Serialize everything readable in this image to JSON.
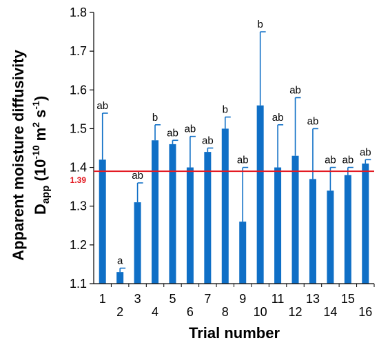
{
  "chart_data": {
    "type": "bar",
    "categories": [
      "1",
      "2",
      "3",
      "4",
      "5",
      "6",
      "7",
      "8",
      "9",
      "10",
      "11",
      "12",
      "13",
      "14",
      "15",
      "16"
    ],
    "values": [
      1.42,
      1.13,
      1.31,
      1.47,
      1.46,
      1.4,
      1.44,
      1.5,
      1.26,
      1.56,
      1.4,
      1.43,
      1.37,
      1.34,
      1.38,
      1.41
    ],
    "error_upper": [
      1.54,
      1.14,
      1.36,
      1.51,
      1.47,
      1.48,
      1.45,
      1.53,
      1.4,
      1.75,
      1.51,
      1.58,
      1.5,
      1.4,
      1.4,
      1.42
    ],
    "significance": [
      "ab",
      "a",
      "ab",
      "b",
      "ab",
      "ab",
      "ab",
      "b",
      "ab",
      "b",
      "ab",
      "ab",
      "ab",
      "ab",
      "ab",
      "ab"
    ],
    "xlabel": "Trial number",
    "ylabel_line1": "Apparent moisture diffusivity",
    "ylabel_line2": {
      "main": "D",
      "sub": "app",
      "rest1": " (10",
      "sup1": "-10",
      "rest2": " m",
      "sup2": "2",
      "rest3": " s",
      "sup3": "-1",
      "rest4": ")"
    },
    "ylim": [
      1.1,
      1.8
    ],
    "yticks": [
      "1.1",
      "1.2",
      "1.3",
      "1.4",
      "1.5",
      "1.6",
      "1.7",
      "1.8"
    ],
    "reference_line": {
      "value": 1.39,
      "label": "1.39",
      "color": "#e31b23"
    },
    "bar_color": "#0f6fc6",
    "grid": false
  }
}
